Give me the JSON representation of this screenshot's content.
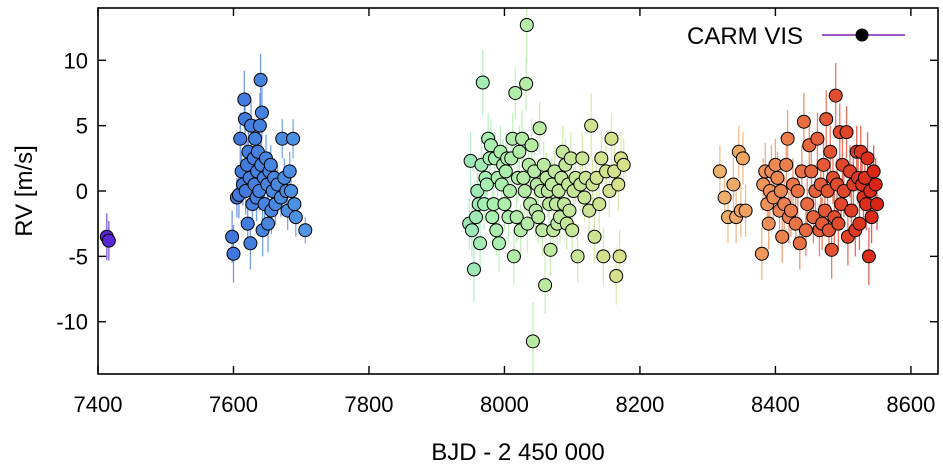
{
  "chart_data": {
    "type": "scatter",
    "xlabel": "BJD - 2 450 000",
    "ylabel": "RV [m/s]",
    "xlim": [
      7400,
      8640
    ],
    "ylim": [
      -14,
      14
    ],
    "x_ticks": [
      7400,
      7600,
      7800,
      8000,
      8200,
      8400,
      8600
    ],
    "y_ticks": [
      -10,
      -5,
      0,
      5,
      10
    ],
    "legend": {
      "label": "CARM VIS",
      "placement": "top-right"
    },
    "grid": false,
    "colormap": "rainbow-by-time",
    "color_stops": [
      "#5a1fd6",
      "#3f74dc",
      "#5aaee6",
      "#a8f0b0",
      "#d8e08a",
      "#f2a060",
      "#d81e12"
    ],
    "series": [
      {
        "label": "CARM VIS",
        "points": [
          [
            7413,
            -3.5,
            1.8
          ],
          [
            7416,
            -3.8,
            1.5
          ],
          [
            7598,
            -3.5,
            2.0
          ],
          [
            7600,
            -4.8,
            2.2
          ],
          [
            7605,
            -0.5,
            1.5
          ],
          [
            7608,
            -0.3,
            1.8
          ],
          [
            7610,
            4.0,
            2.0
          ],
          [
            7612,
            1.5,
            1.5
          ],
          [
            7614,
            0.5,
            1.6
          ],
          [
            7616,
            7.0,
            2.2
          ],
          [
            7617,
            5.5,
            2.0
          ],
          [
            7618,
            0.0,
            1.8
          ],
          [
            7620,
            2.0,
            2.0
          ],
          [
            7621,
            -2.5,
            1.8
          ],
          [
            7622,
            3.0,
            2.2
          ],
          [
            7624,
            1.0,
            1.5
          ],
          [
            7625,
            -4.0,
            2.0
          ],
          [
            7626,
            5.0,
            2.0
          ],
          [
            7628,
            -1.0,
            1.8
          ],
          [
            7630,
            2.5,
            1.5
          ],
          [
            7631,
            0.5,
            1.6
          ],
          [
            7632,
            4.0,
            1.5
          ],
          [
            7634,
            -0.5,
            1.8
          ],
          [
            7635,
            1.5,
            1.5
          ],
          [
            7636,
            3.0,
            2.0
          ],
          [
            7638,
            0.0,
            1.5
          ],
          [
            7639,
            5.0,
            2.5
          ],
          [
            7640,
            8.5,
            2.0
          ],
          [
            7641,
            2.0,
            1.8
          ],
          [
            7642,
            6.0,
            2.0
          ],
          [
            7643,
            -3.0,
            2.0
          ],
          [
            7645,
            1.0,
            1.5
          ],
          [
            7646,
            -1.0,
            1.6
          ],
          [
            7648,
            2.5,
            1.8
          ],
          [
            7650,
            0.5,
            2.0
          ],
          [
            7651,
            -2.5,
            2.2
          ],
          [
            7653,
            1.5,
            1.5
          ],
          [
            7655,
            2.0,
            1.5
          ],
          [
            7656,
            -1.5,
            1.8
          ],
          [
            7658,
            0.0,
            1.5
          ],
          [
            7660,
            1.0,
            1.5
          ],
          [
            7662,
            -1.0,
            1.6
          ],
          [
            7665,
            0.5,
            1.5
          ],
          [
            7670,
            -0.5,
            1.5
          ],
          [
            7672,
            4.0,
            1.5
          ],
          [
            7675,
            1.0,
            1.5
          ],
          [
            7678,
            0.0,
            1.6
          ],
          [
            7680,
            -1.5,
            1.5
          ],
          [
            7683,
            1.5,
            1.5
          ],
          [
            7685,
            0.0,
            1.5
          ],
          [
            7688,
            4.0,
            1.5
          ],
          [
            7690,
            -1.0,
            1.5
          ],
          [
            7692,
            -2.0,
            1.5
          ],
          [
            7706,
            -3.0,
            1.0
          ],
          [
            7948,
            -2.5,
            2.0
          ],
          [
            7950,
            2.3,
            2.2
          ],
          [
            7952,
            -3.0,
            2.0
          ],
          [
            7955,
            -6.0,
            2.5
          ],
          [
            7958,
            -2.0,
            2.0
          ],
          [
            7960,
            0.0,
            1.8
          ],
          [
            7962,
            -1.0,
            2.0
          ],
          [
            7964,
            -4.0,
            2.2
          ],
          [
            7966,
            2.0,
            2.0
          ],
          [
            7968,
            8.3,
            2.5
          ],
          [
            7970,
            -1.0,
            2.0
          ],
          [
            7972,
            1.0,
            1.8
          ],
          [
            7974,
            0.5,
            2.0
          ],
          [
            7976,
            4.0,
            2.0
          ],
          [
            7978,
            2.5,
            2.2
          ],
          [
            7980,
            3.5,
            2.0
          ],
          [
            7982,
            -2.0,
            2.0
          ],
          [
            7984,
            -1.0,
            1.8
          ],
          [
            7986,
            2.5,
            2.0
          ],
          [
            7988,
            -3.0,
            2.0
          ],
          [
            7990,
            1.0,
            2.0
          ],
          [
            7992,
            -4.0,
            2.2
          ],
          [
            7994,
            3.0,
            2.0
          ],
          [
            7996,
            0.5,
            1.8
          ],
          [
            7998,
            2.0,
            2.0
          ],
          [
            8000,
            -1.0,
            2.0
          ],
          [
            8002,
            1.5,
            2.2
          ],
          [
            8004,
            2.5,
            2.0
          ],
          [
            8006,
            -2.0,
            2.0
          ],
          [
            8008,
            0.0,
            1.8
          ],
          [
            8010,
            2.5,
            2.0
          ],
          [
            8012,
            4.0,
            2.0
          ],
          [
            8014,
            -5.0,
            2.2
          ],
          [
            8016,
            7.5,
            2.0
          ],
          [
            8018,
            -2.0,
            2.0
          ],
          [
            8020,
            1.0,
            1.8
          ],
          [
            8022,
            3.0,
            2.0
          ],
          [
            8024,
            -3.0,
            2.0
          ],
          [
            8026,
            4.0,
            2.2
          ],
          [
            8028,
            1.0,
            2.0
          ],
          [
            8030,
            0.0,
            2.0
          ],
          [
            8032,
            8.2,
            2.0
          ],
          [
            8033,
            12.7,
            3.0
          ],
          [
            8034,
            -2.5,
            2.2
          ],
          [
            8036,
            2.0,
            2.0
          ],
          [
            8038,
            -1.0,
            2.0
          ],
          [
            8040,
            3.5,
            2.0
          ],
          [
            8042,
            -11.5,
            3.0
          ],
          [
            8044,
            1.5,
            2.0
          ],
          [
            8046,
            -1.5,
            2.0
          ],
          [
            8048,
            0.5,
            1.8
          ],
          [
            8050,
            -2.0,
            2.0
          ],
          [
            8052,
            4.8,
            2.0
          ],
          [
            8054,
            0.0,
            2.0
          ],
          [
            8056,
            -3.0,
            2.0
          ],
          [
            8058,
            2.0,
            1.8
          ],
          [
            8060,
            -7.2,
            2.2
          ],
          [
            8062,
            1.0,
            2.0
          ],
          [
            8064,
            0.0,
            2.0
          ],
          [
            8066,
            -1.0,
            1.8
          ],
          [
            8068,
            -4.5,
            2.0
          ],
          [
            8070,
            0.5,
            2.0
          ],
          [
            8072,
            -3.0,
            2.0
          ],
          [
            8074,
            1.5,
            2.0
          ],
          [
            8076,
            -1.0,
            1.8
          ],
          [
            8078,
            -2.5,
            2.0
          ],
          [
            8080,
            0.0,
            2.0
          ],
          [
            8082,
            -2.0,
            2.0
          ],
          [
            8084,
            1.0,
            1.8
          ],
          [
            8086,
            3.0,
            2.0
          ],
          [
            8088,
            -1.0,
            2.0
          ],
          [
            8090,
            2.0,
            2.0
          ],
          [
            8092,
            -2.5,
            2.0
          ],
          [
            8094,
            0.5,
            1.8
          ],
          [
            8096,
            -1.5,
            2.0
          ],
          [
            8098,
            2.5,
            2.0
          ],
          [
            8100,
            -3.0,
            2.0
          ],
          [
            8102,
            0.0,
            1.8
          ],
          [
            8105,
            1.0,
            2.0
          ],
          [
            8108,
            -5.0,
            2.0
          ],
          [
            8112,
            0.5,
            2.0
          ],
          [
            8115,
            2.5,
            2.0
          ],
          [
            8118,
            -0.5,
            1.8
          ],
          [
            8120,
            1.0,
            2.0
          ],
          [
            8125,
            -1.5,
            2.0
          ],
          [
            8128,
            5.0,
            2.5
          ],
          [
            8130,
            0.5,
            2.0
          ],
          [
            8133,
            -3.5,
            2.0
          ],
          [
            8136,
            1.0,
            2.0
          ],
          [
            8140,
            -1.0,
            2.0
          ],
          [
            8143,
            2.5,
            2.0
          ],
          [
            8146,
            -5.0,
            2.2
          ],
          [
            8150,
            1.5,
            2.0
          ],
          [
            8155,
            0.0,
            2.0
          ],
          [
            8158,
            4.0,
            2.0
          ],
          [
            8162,
            1.5,
            2.0
          ],
          [
            8165,
            -6.5,
            2.2
          ],
          [
            8168,
            0.5,
            2.0
          ],
          [
            8170,
            -5.0,
            2.0
          ],
          [
            8172,
            2.5,
            2.0
          ],
          [
            8176,
            2.0,
            2.0
          ],
          [
            8318,
            1.5,
            2.0
          ],
          [
            8325,
            -0.5,
            2.0
          ],
          [
            8330,
            -2.0,
            2.0
          ],
          [
            8338,
            0.5,
            2.0
          ],
          [
            8342,
            -2.0,
            2.0
          ],
          [
            8346,
            3.0,
            2.0
          ],
          [
            8349,
            -1.5,
            2.0
          ],
          [
            8352,
            2.5,
            2.0
          ],
          [
            8356,
            -1.5,
            2.0
          ],
          [
            8380,
            -4.8,
            2.0
          ],
          [
            8382,
            0.5,
            2.0
          ],
          [
            8385,
            1.5,
            2.2
          ],
          [
            8388,
            -1.0,
            2.0
          ],
          [
            8390,
            -2.5,
            2.0
          ],
          [
            8392,
            0.0,
            2.0
          ],
          [
            8394,
            1.5,
            2.0
          ],
          [
            8397,
            -0.5,
            2.0
          ],
          [
            8400,
            2.0,
            2.0
          ],
          [
            8403,
            1.0,
            2.0
          ],
          [
            8406,
            -1.5,
            2.0
          ],
          [
            8408,
            0.0,
            2.0
          ],
          [
            8410,
            -3.5,
            2.0
          ],
          [
            8413,
            -1.0,
            2.0
          ],
          [
            8416,
            2.0,
            2.0
          ],
          [
            8418,
            4.0,
            2.2
          ],
          [
            8420,
            -2.0,
            2.0
          ],
          [
            8423,
            -1.5,
            2.0
          ],
          [
            8426,
            0.5,
            2.0
          ],
          [
            8430,
            -2.5,
            2.0
          ],
          [
            8433,
            0.0,
            2.0
          ],
          [
            8436,
            -4.0,
            2.0
          ],
          [
            8439,
            1.5,
            2.0
          ],
          [
            8442,
            5.3,
            2.2
          ],
          [
            8445,
            -3.0,
            2.0
          ],
          [
            8447,
            -1.0,
            2.0
          ],
          [
            8450,
            3.5,
            2.0
          ],
          [
            8453,
            1.5,
            2.0
          ],
          [
            8456,
            -2.0,
            2.0
          ],
          [
            8459,
            0.0,
            2.0
          ],
          [
            8462,
            4.0,
            2.0
          ],
          [
            8465,
            -3.0,
            2.0
          ],
          [
            8467,
            0.5,
            2.0
          ],
          [
            8469,
            -2.5,
            2.0
          ],
          [
            8471,
            2.0,
            2.0
          ],
          [
            8473,
            -1.5,
            2.0
          ],
          [
            8475,
            5.5,
            2.2
          ],
          [
            8477,
            0.0,
            2.0
          ],
          [
            8479,
            -3.0,
            2.0
          ],
          [
            8481,
            3.0,
            2.0
          ],
          [
            8483,
            -4.5,
            2.2
          ],
          [
            8485,
            1.0,
            2.0
          ],
          [
            8487,
            -2.0,
            2.0
          ],
          [
            8489,
            7.3,
            2.5
          ],
          [
            8491,
            0.5,
            2.0
          ],
          [
            8493,
            -2.5,
            2.0
          ],
          [
            8495,
            4.5,
            2.2
          ],
          [
            8497,
            -1.0,
            2.0
          ],
          [
            8499,
            2.0,
            2.0
          ],
          [
            8501,
            0.0,
            2.0
          ],
          [
            8505,
            4.5,
            2.0
          ],
          [
            8507,
            -3.5,
            2.2
          ],
          [
            8510,
            1.5,
            2.0
          ],
          [
            8512,
            -1.5,
            2.0
          ],
          [
            8515,
            0.5,
            2.0
          ],
          [
            8518,
            -3.0,
            2.0
          ],
          [
            8520,
            3.0,
            2.0
          ],
          [
            8522,
            1.0,
            2.0
          ],
          [
            8524,
            -2.5,
            2.0
          ],
          [
            8526,
            3.0,
            2.0
          ],
          [
            8528,
            0.5,
            2.0
          ],
          [
            8530,
            -0.5,
            2.0
          ],
          [
            8532,
            1.0,
            2.0
          ],
          [
            8534,
            -1.0,
            2.0
          ],
          [
            8536,
            2.5,
            2.0
          ],
          [
            8538,
            -5.0,
            2.2
          ],
          [
            8540,
            0.0,
            2.0
          ],
          [
            8542,
            -2.0,
            2.0
          ],
          [
            8545,
            1.5,
            2.0
          ],
          [
            8548,
            0.5,
            2.0
          ],
          [
            8550,
            -1.0,
            2.0
          ]
        ]
      }
    ]
  }
}
